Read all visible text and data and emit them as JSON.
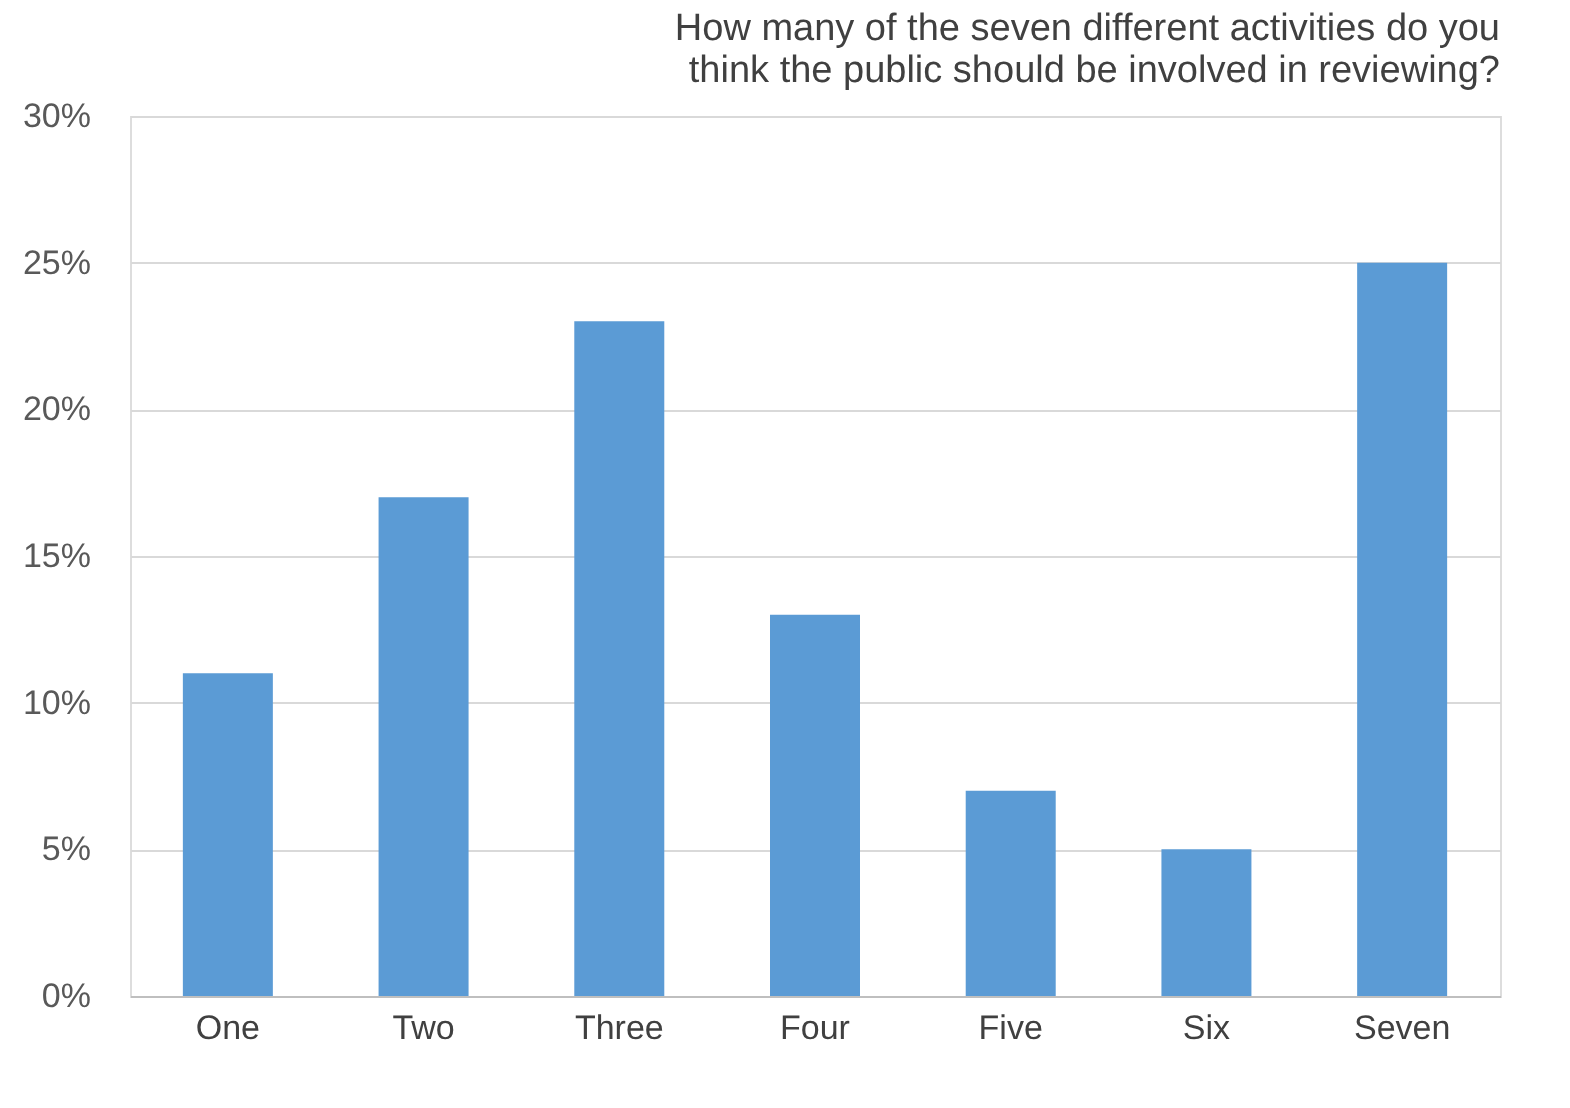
{
  "chart_data": {
    "type": "bar",
    "title": "How many of the seven different activities do you think the public should be involved in reviewing?",
    "categories": [
      "One",
      "Two",
      "Three",
      "Four",
      "Five",
      "Six",
      "Seven"
    ],
    "values": [
      11,
      17,
      23,
      13,
      7,
      5,
      25
    ],
    "color": "#5b9bd5",
    "ylim": [
      0,
      30
    ],
    "yticks": [
      {
        "value": 0,
        "label": "0%"
      },
      {
        "value": 5,
        "label": "5%"
      },
      {
        "value": 10,
        "label": "10%"
      },
      {
        "value": 15,
        "label": "15%"
      },
      {
        "value": 20,
        "label": "20%"
      },
      {
        "value": 25,
        "label": "25%"
      },
      {
        "value": 30,
        "label": "30%"
      }
    ],
    "grid": "y"
  }
}
